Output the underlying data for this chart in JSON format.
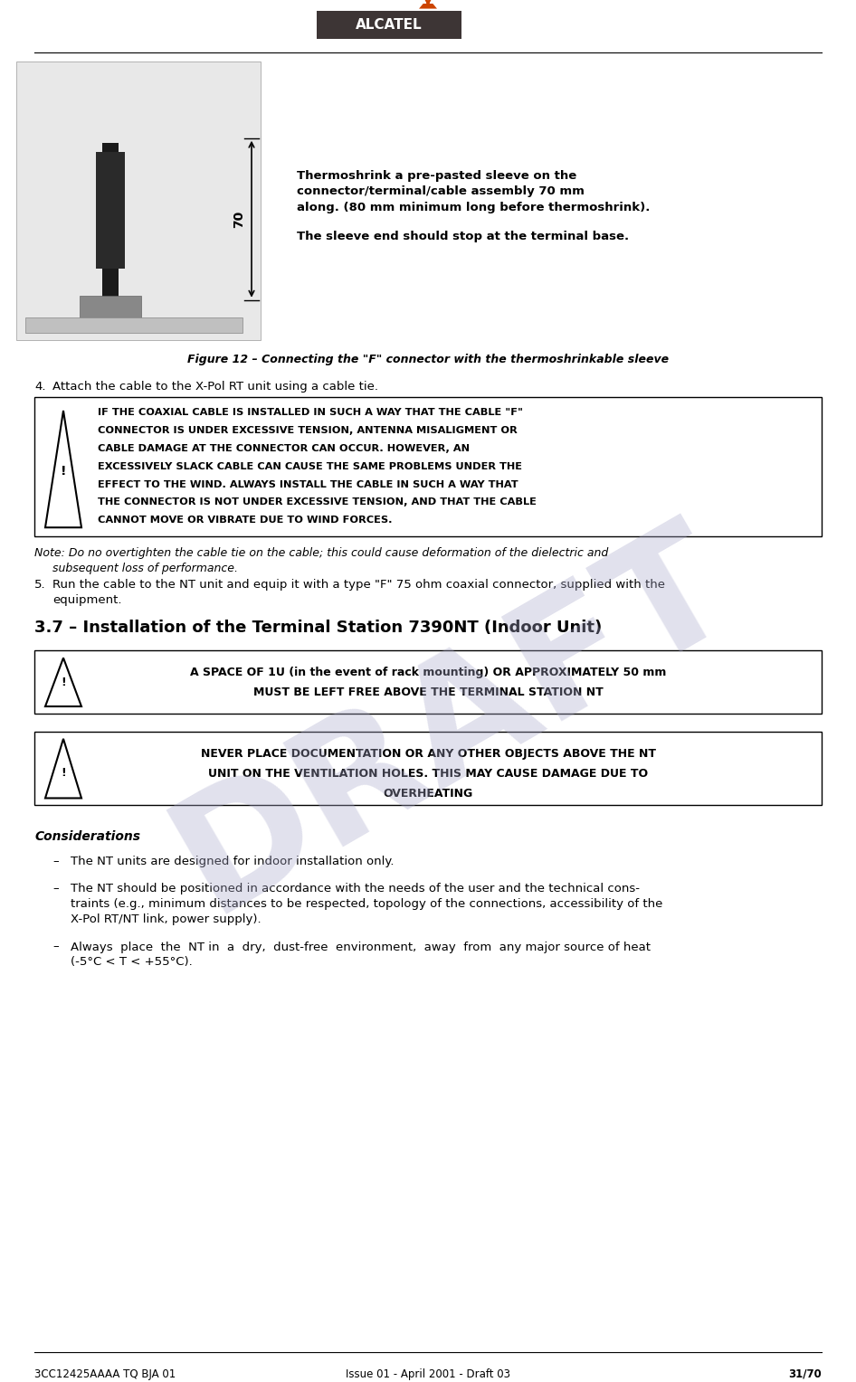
{
  "page_width": 9.46,
  "page_height": 15.28,
  "bg_color": "#ffffff",
  "header_logo_text": "ALCATEL",
  "header_logo_bg": "#3d3535",
  "header_arrow_color": "#cc4400",
  "footer_left": "3CC12425AAAA TQ BJA 01",
  "footer_center": "Issue 01 - April 2001 - Draft 03",
  "footer_right": "31/70",
  "figure_caption": "Figure 12 – Connecting the \"F\" connector with the thermoshrinkable sleeve",
  "thermo_text_line1": "Thermoshrink a pre-pasted sleeve on the",
  "thermo_text_line2": "connector/terminal/cable assembly 70 mm",
  "thermo_text_line3": "along. (80 mm minimum long before thermoshrink).",
  "thermo_text_line4": "The sleeve end should stop at the terminal base.",
  "dim_label": "70",
  "step4_text": "4.\tAttach the cable to the X-Pol RT unit using a cable tie.",
  "note_text": "Note: Do no overtighten the cable tie on the cable; this could cause deformation of the dielectric and\n        subsequent loss of performance.",
  "step5_text": "5.\tRun the cable to the NT unit and equip it with a type \"F\" 75 ohm coaxial connector, supplied with the\n\tequipment.",
  "section_heading": "3.7 – Installation of the Terminal Station 7390NT (Indoor Unit)",
  "warning1_text": "IF THE COAXIAL CABLE IS INSTALLED IN SUCH A WAY THAT THE CABLE \"F\"\nCONNECTOR IS UNDER EXCESSIVE TENSION, ANTENNA MISALIGMENT OR\nCABLE DAMAGE AT THE CONNECTOR CAN OCCUR. HOWEVER, AN\nEXCESSIVELY SLACK CABLE CAN CAUSE THE SAME PROBLEMS UNDER THE\nEFFECT TO THE WIND. ALWAYS INSTALL THE CABLE IN SUCH A WAY THAT\nTHE CONNECTOR IS NOT UNDER EXCESSIVE TENSION, AND THAT THE CABLE\nCANNOT MOVE OR VIBRATE DUE TO WIND FORCES.",
  "warning2_text": "A SPACE OF 1U (in the event of rack mounting) OR APPROXIMATELY 50 mm\nMUST BE LEFT FREE ABOVE THE TERMINAL STATION NT",
  "warning3_text": "NEVER PLACE DOCUMENTATION OR ANY OTHER OBJECTS ABOVE THE NT\nUNIT ON THE VENTILATION HOLES. THIS MAY CAUSE DAMAGE DUE TO\nOVERHEATING",
  "considerations_heading": "Considerations",
  "bullet1": "–\tThe NT units are designed for indoor installation only.",
  "bullet2": "–\tThe NT should be positioned in accordance with the needs of the user and the technical cons-\n\ttraints (e.g., minimum distances to be respected, topology of the connections, accessibility of the\n\tX-Pol RT/NT link, power supply).",
  "bullet3": "–\tAlways place the NT in a dry, dust-free environment, away from any major source of heat\n\t(-5°C < T < +55°C).",
  "draft_watermark": "DRAFT",
  "draft_color": "#aaaacc",
  "draft_alpha": 0.35
}
